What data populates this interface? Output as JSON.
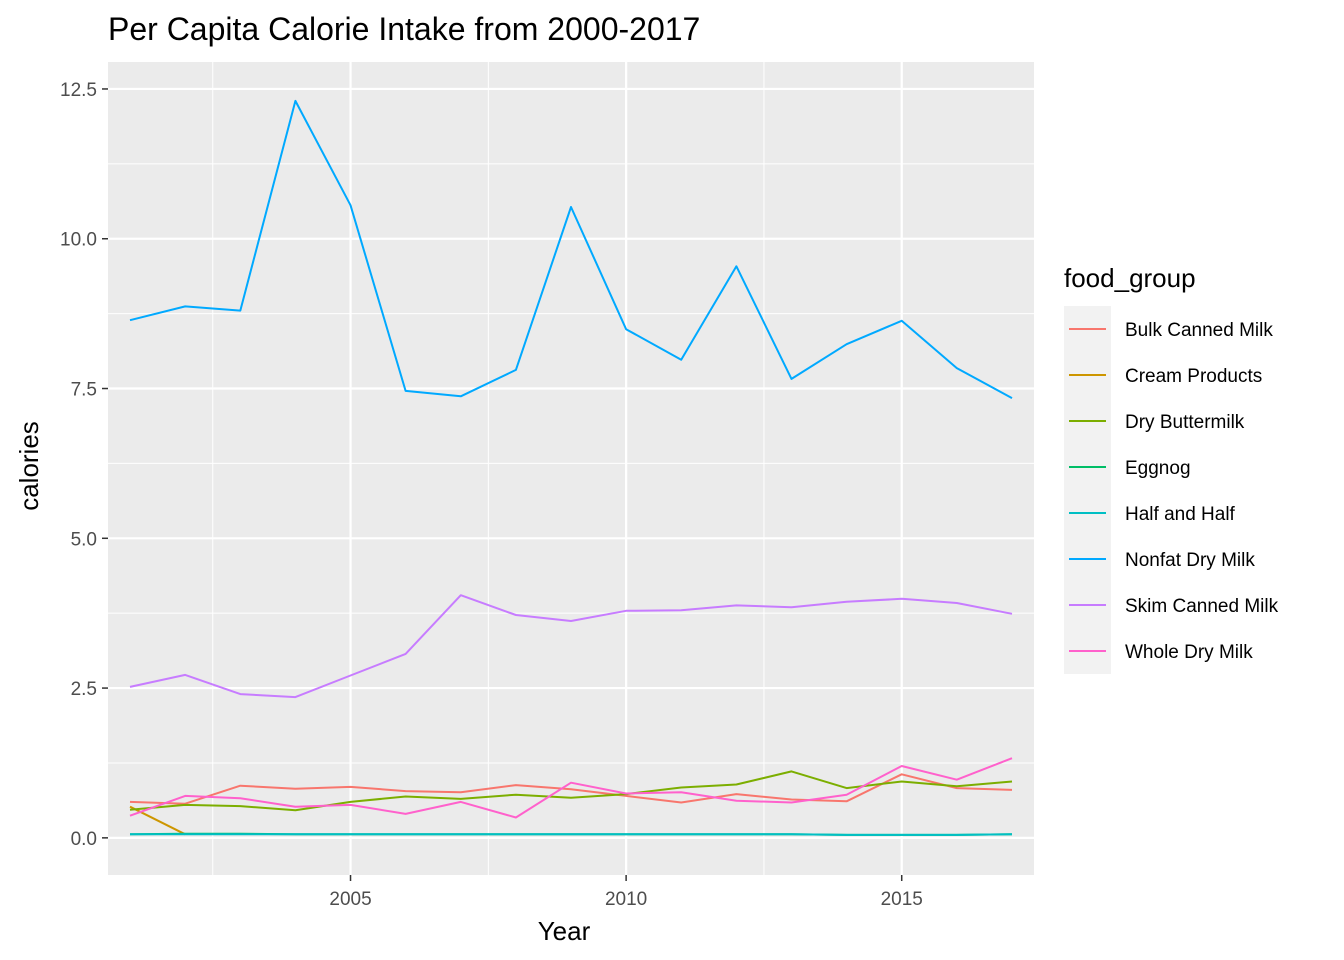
{
  "chart_data": {
    "type": "line",
    "title": "Per Capita Calorie Intake from 2000-2017",
    "xlabel": "Year",
    "ylabel": "calories",
    "xlim": [
      2000.6,
      2017.4
    ],
    "ylim": [
      -0.62,
      12.95
    ],
    "x_ticks": [
      2005,
      2010,
      2015
    ],
    "x_tick_labels": [
      "2005",
      "2010",
      "2015"
    ],
    "y_ticks": [
      0,
      2.5,
      5,
      7.5,
      10,
      12.5
    ],
    "y_tick_labels": [
      "0.0",
      "2.5",
      "5.0",
      "7.5",
      "10.0",
      "12.5"
    ],
    "grid": true,
    "legend_title": "food_group",
    "legend_position": "right",
    "x": [
      2001,
      2002,
      2003,
      2004,
      2005,
      2006,
      2007,
      2008,
      2009,
      2010,
      2011,
      2012,
      2013,
      2014,
      2015,
      2016,
      2017
    ],
    "series": [
      {
        "name": "Bulk Canned Milk",
        "color": "#F8766D",
        "values": [
          0.6,
          0.57,
          0.87,
          0.82,
          0.85,
          0.78,
          0.76,
          0.88,
          0.81,
          0.7,
          0.59,
          0.73,
          0.64,
          0.61,
          1.06,
          0.83,
          0.8
        ]
      },
      {
        "name": "Cream Products",
        "color": "#CD9600",
        "values": [
          0.52,
          0.06,
          null,
          null,
          null,
          null,
          null,
          null,
          null,
          null,
          null,
          null,
          null,
          null,
          null,
          null,
          null
        ]
      },
      {
        "name": "Dry Buttermilk",
        "color": "#7CAE00",
        "values": [
          0.47,
          0.55,
          0.53,
          0.46,
          0.6,
          0.69,
          0.65,
          0.72,
          0.67,
          0.73,
          0.84,
          0.89,
          1.11,
          0.83,
          0.94,
          0.86,
          0.94
        ]
      },
      {
        "name": "Eggnog",
        "color": "#00BE67",
        "values": [
          0.06,
          0.07,
          0.07,
          0.06,
          0.06,
          0.06,
          0.06,
          0.06,
          0.06,
          0.06,
          0.06,
          0.06,
          0.06,
          0.05,
          0.05,
          0.05,
          0.06
        ]
      },
      {
        "name": "Half and Half",
        "color": "#00BFC4",
        "values": [
          0.06,
          0.06,
          0.06,
          0.06,
          0.06,
          0.06,
          0.06,
          0.06,
          0.06,
          0.06,
          0.06,
          0.06,
          0.06,
          0.05,
          0.05,
          0.05,
          0.06
        ]
      },
      {
        "name": "Nonfat Dry Milk",
        "color": "#00A9FF",
        "values": [
          8.64,
          8.87,
          8.8,
          12.3,
          10.56,
          7.46,
          7.37,
          7.81,
          10.53,
          8.49,
          7.98,
          9.54,
          7.66,
          8.24,
          8.63,
          7.84,
          7.34
        ]
      },
      {
        "name": "Skim Canned Milk",
        "color": "#C77CFF",
        "values": [
          2.52,
          2.72,
          2.4,
          2.35,
          2.71,
          3.07,
          4.05,
          3.72,
          3.62,
          3.79,
          3.8,
          3.88,
          3.85,
          3.94,
          3.99,
          3.92,
          3.74
        ]
      },
      {
        "name": "Whole Dry Milk",
        "color": "#FF61CC",
        "values": [
          0.37,
          0.7,
          0.66,
          0.52,
          0.55,
          0.4,
          0.6,
          0.34,
          0.92,
          0.74,
          0.76,
          0.62,
          0.59,
          0.72,
          1.2,
          0.97,
          1.33
        ]
      }
    ]
  }
}
